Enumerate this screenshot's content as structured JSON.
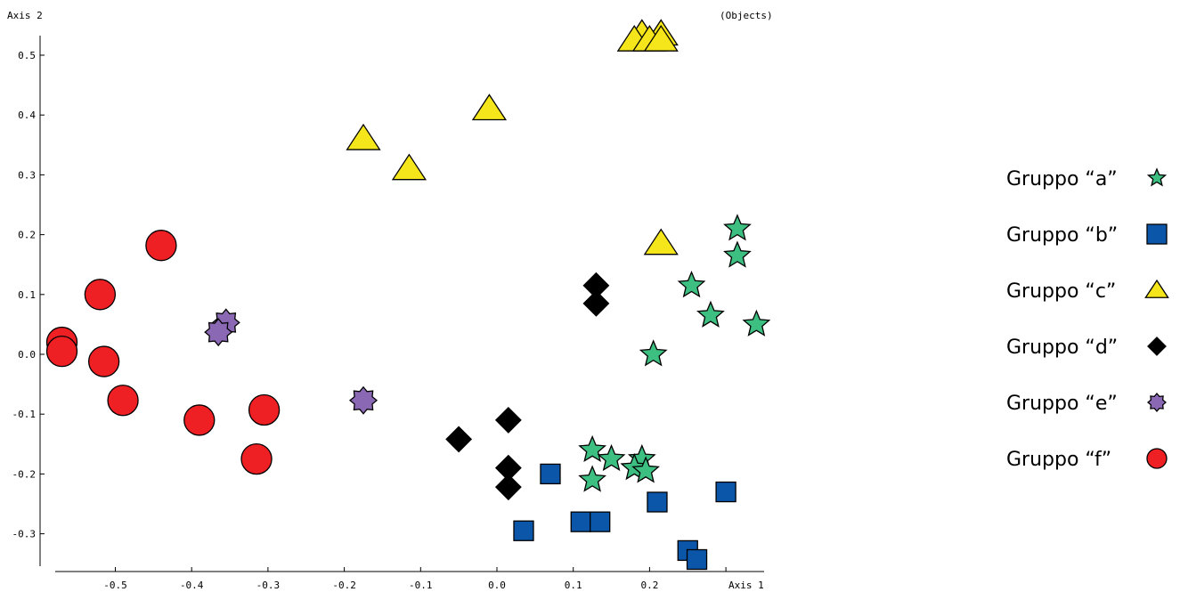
{
  "chart_data": {
    "type": "scatter",
    "xlabel": "Axis  1",
    "ylabel": "Axis  2",
    "corner_label": "(Objects)",
    "xlim": [
      -0.62,
      0.36
    ],
    "ylim": [
      -0.365,
      0.545
    ],
    "x_ticks": [
      -0.5,
      -0.4,
      -0.3,
      -0.2,
      -0.1,
      0.0,
      0.1,
      0.2,
      0.3
    ],
    "x_tick_labels": [
      "-0.5",
      "-0.4",
      "-0.3",
      "-0.2",
      "-0.1",
      "0.0",
      "0.1",
      "0.2",
      ""
    ],
    "y_ticks": [
      0.5,
      0.4,
      0.3,
      0.2,
      0.1,
      0.0,
      -0.1,
      -0.2,
      -0.3
    ],
    "y_tick_labels": [
      "0.5",
      "0.4",
      "0.3",
      "0.2",
      "0.1",
      "0.0",
      "-0.1",
      "-0.2",
      "-0.3"
    ],
    "grid": false,
    "legend_position": "right",
    "series": [
      {
        "name": "Gruppo “a”",
        "marker": "star",
        "color": "#3dbf82",
        "points": [
          [
            0.315,
            0.21
          ],
          [
            0.315,
            0.165
          ],
          [
            0.255,
            0.115
          ],
          [
            0.28,
            0.065
          ],
          [
            0.34,
            0.05
          ],
          [
            0.205,
            0.0
          ],
          [
            0.125,
            -0.16
          ],
          [
            0.15,
            -0.175
          ],
          [
            0.19,
            -0.175
          ],
          [
            0.18,
            -0.19
          ],
          [
            0.195,
            -0.195
          ],
          [
            0.125,
            -0.21
          ]
        ]
      },
      {
        "name": "Gruppo “b”",
        "marker": "square",
        "color": "#0b56a8",
        "points": [
          [
            0.07,
            -0.2
          ],
          [
            0.3,
            -0.23
          ],
          [
            0.21,
            -0.247
          ],
          [
            0.11,
            -0.28
          ],
          [
            0.135,
            -0.28
          ],
          [
            0.035,
            -0.295
          ],
          [
            0.25,
            -0.328
          ],
          [
            0.262,
            -0.343
          ]
        ]
      },
      {
        "name": "Gruppo “c”",
        "marker": "triangle",
        "color": "#f5e51b",
        "points": [
          [
            0.19,
            0.535
          ],
          [
            0.215,
            0.535
          ],
          [
            0.18,
            0.525
          ],
          [
            0.2,
            0.525
          ],
          [
            0.215,
            0.525
          ],
          [
            -0.01,
            0.41
          ],
          [
            -0.175,
            0.36
          ],
          [
            -0.115,
            0.31
          ],
          [
            0.215,
            0.185
          ]
        ]
      },
      {
        "name": "Gruppo “d”",
        "marker": "diamond",
        "color": "#000000",
        "points": [
          [
            0.13,
            0.115
          ],
          [
            0.13,
            0.085
          ],
          [
            0.015,
            -0.11
          ],
          [
            -0.05,
            -0.142
          ],
          [
            0.015,
            -0.19
          ],
          [
            0.015,
            -0.222
          ]
        ]
      },
      {
        "name": "Gruppo “e”",
        "marker": "octagram",
        "color": "#8b68b3",
        "points": [
          [
            -0.355,
            0.053
          ],
          [
            -0.365,
            0.037
          ],
          [
            -0.175,
            -0.077
          ]
        ]
      },
      {
        "name": "Gruppo “f”",
        "marker": "circle",
        "color": "#ee2024",
        "points": [
          [
            -0.44,
            0.182
          ],
          [
            -0.52,
            0.1
          ],
          [
            -0.57,
            0.02
          ],
          [
            -0.57,
            0.005
          ],
          [
            -0.515,
            -0.012
          ],
          [
            -0.49,
            -0.077
          ],
          [
            -0.39,
            -0.11
          ],
          [
            -0.305,
            -0.093
          ],
          [
            -0.315,
            -0.175
          ]
        ]
      }
    ]
  }
}
